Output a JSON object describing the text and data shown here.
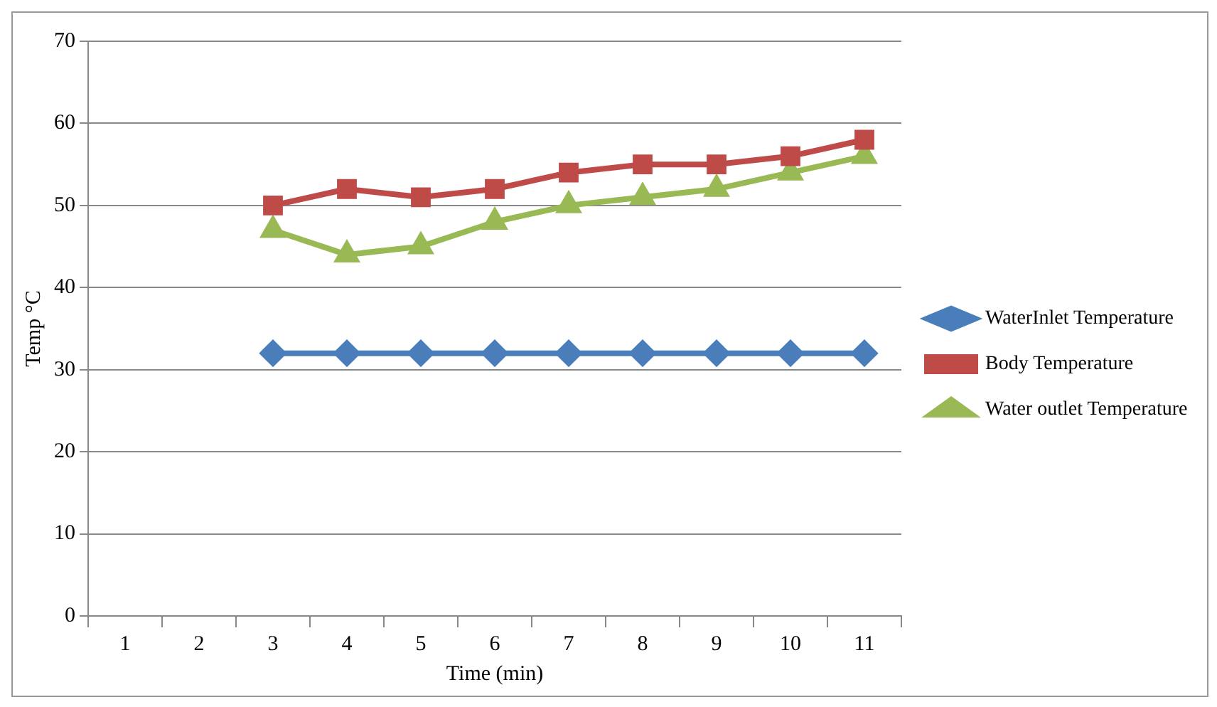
{
  "chart_data": {
    "type": "line",
    "xlabel": "Time (min)",
    "ylabel": "Temp °C",
    "categories": [
      "1",
      "2",
      "3",
      "4",
      "5",
      "6",
      "7",
      "8",
      "9",
      "10",
      "11"
    ],
    "series": [
      {
        "name": "WaterInlet Temperature",
        "color": "#4a7ebb",
        "marker": "diamond",
        "values": [
          null,
          null,
          32,
          32,
          32,
          32,
          32,
          32,
          32,
          32,
          32
        ]
      },
      {
        "name": "Body Temperature",
        "color": "#be4b48",
        "marker": "square",
        "values": [
          null,
          null,
          50,
          52,
          51,
          52,
          54,
          55,
          55,
          56,
          58
        ]
      },
      {
        "name": "Water outlet Temperature",
        "color": "#98b954",
        "marker": "triangle",
        "values": [
          null,
          null,
          47,
          44,
          45,
          48,
          50,
          51,
          52,
          54,
          56
        ]
      }
    ],
    "ylim": [
      0,
      70
    ],
    "yticks": [
      0,
      10,
      20,
      30,
      40,
      50,
      60,
      70
    ],
    "grid": "y",
    "legend": "right",
    "line_style": "solid"
  }
}
